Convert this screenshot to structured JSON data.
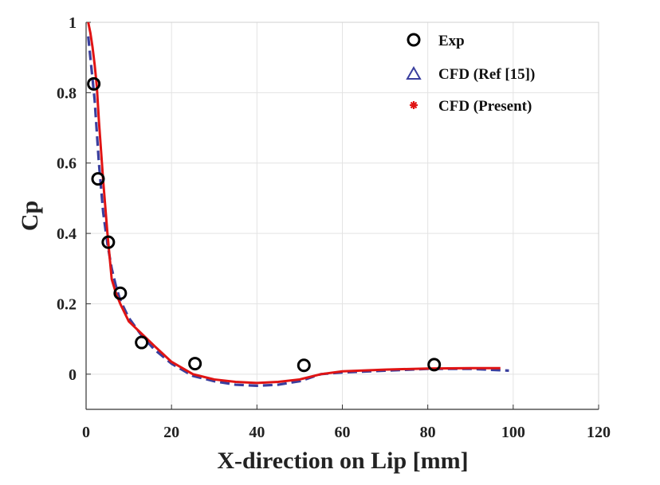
{
  "chart_data": {
    "type": "line",
    "title": "",
    "xlabel": "X-direction on Lip [mm]",
    "ylabel": "Cp",
    "xlim": [
      0,
      120
    ],
    "ylim": [
      -0.1,
      1.0
    ],
    "xticks": [
      "0",
      "20",
      "40",
      "60",
      "80",
      "100",
      "120"
    ],
    "yticks": [
      "0",
      "0.2",
      "0.4",
      "0.6",
      "0.8",
      "1"
    ],
    "grid": true,
    "legend_position": "top-right",
    "colors": {
      "exp": "#000000",
      "ref": "#3a3f9e",
      "present": "#e01414"
    },
    "series": [
      {
        "name": "Exp",
        "style": "markers-circle",
        "x": [
          1.8,
          2.8,
          5.2,
          8.0,
          13.0,
          25.5,
          51.0,
          81.5
        ],
        "y": [
          0.825,
          0.555,
          0.375,
          0.23,
          0.09,
          0.03,
          0.025,
          0.027
        ]
      },
      {
        "name": "CFD (Ref [15])",
        "style": "dashed-line",
        "legend_marker": "triangle",
        "x": [
          0.5,
          1.0,
          2.0,
          3.0,
          4.0,
          5.0,
          6.0,
          7.0,
          8.0,
          10.0,
          13.0,
          16.0,
          20.0,
          25.0,
          30.0,
          35.0,
          40.0,
          45.0,
          50.0,
          55.0,
          60.0,
          70.0,
          80.0,
          90.0,
          99.0
        ],
        "y": [
          0.96,
          0.9,
          0.78,
          0.6,
          0.46,
          0.37,
          0.3,
          0.25,
          0.21,
          0.16,
          0.11,
          0.07,
          0.03,
          -0.005,
          -0.02,
          -0.03,
          -0.033,
          -0.03,
          -0.02,
          0.0,
          0.005,
          0.01,
          0.015,
          0.015,
          0.01
        ]
      },
      {
        "name": "CFD (Present)",
        "style": "solid-line",
        "legend_marker": "asterisk",
        "x": [
          0.5,
          1.0,
          1.5,
          2.0,
          2.5,
          3.0,
          4.0,
          5.0,
          6.0,
          7.0,
          8.0,
          10.0,
          13.0,
          16.0,
          20.0,
          25.0,
          30.0,
          35.0,
          40.0,
          45.0,
          50.0,
          55.0,
          60.0,
          70.0,
          80.0,
          90.0,
          97.0
        ],
        "y": [
          1.0,
          0.97,
          0.93,
          0.88,
          0.82,
          0.72,
          0.55,
          0.4,
          0.27,
          0.23,
          0.2,
          0.15,
          0.115,
          0.08,
          0.035,
          0.0,
          -0.015,
          -0.022,
          -0.025,
          -0.022,
          -0.015,
          0.0,
          0.008,
          0.013,
          0.016,
          0.017,
          0.017
        ]
      }
    ]
  }
}
